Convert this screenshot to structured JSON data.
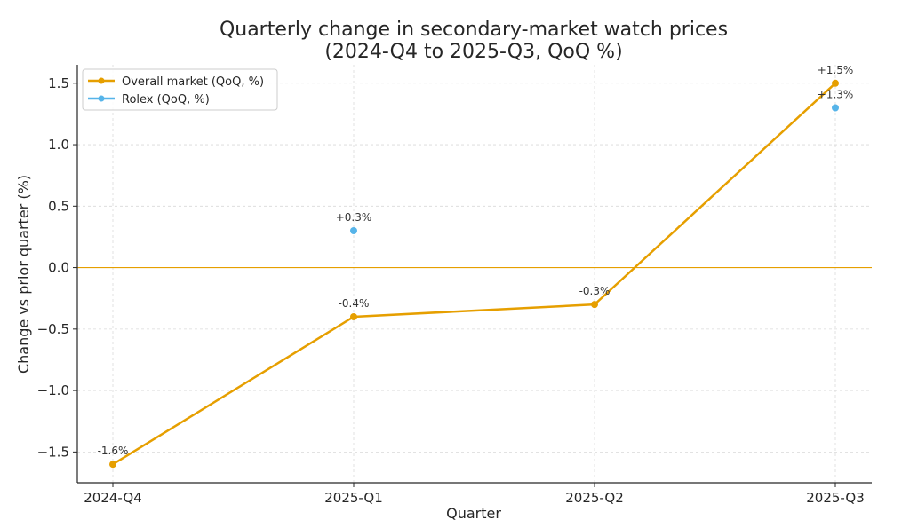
{
  "chart_data": {
    "type": "line",
    "title_lines": [
      "Quarterly change in secondary-market watch prices",
      "(2024-Q4 to 2025-Q3, QoQ %)"
    ],
    "xlabel": "Quarter",
    "ylabel": "Change vs prior quarter (%)",
    "categories": [
      "2024-Q4",
      "2025-Q1",
      "2025-Q2",
      "2025-Q3"
    ],
    "ylim": [
      -1.75,
      1.65
    ],
    "yticks": [
      -1.5,
      -1.0,
      -0.5,
      0.0,
      0.5,
      1.0,
      1.5
    ],
    "ytick_labels": [
      "−1.5",
      "−1.0",
      "−0.5",
      "0.0",
      "0.5",
      "1.0",
      "1.5"
    ],
    "grid": true,
    "reference_line": 0,
    "legend_position": "top-left",
    "series": [
      {
        "name": "Overall market (QoQ, %)",
        "style": "line-marker",
        "color": "#e69f00",
        "values": [
          -1.6,
          -0.4,
          -0.3,
          1.5
        ],
        "labels": [
          "-1.6%",
          "-0.4%",
          "-0.3%",
          "+1.5%"
        ]
      },
      {
        "name": "Rolex (QoQ, %)",
        "style": "marker",
        "color": "#56b4e9",
        "values": [
          null,
          0.3,
          null,
          1.3
        ],
        "labels": [
          null,
          "+0.3%",
          null,
          "+1.3%"
        ]
      }
    ]
  }
}
